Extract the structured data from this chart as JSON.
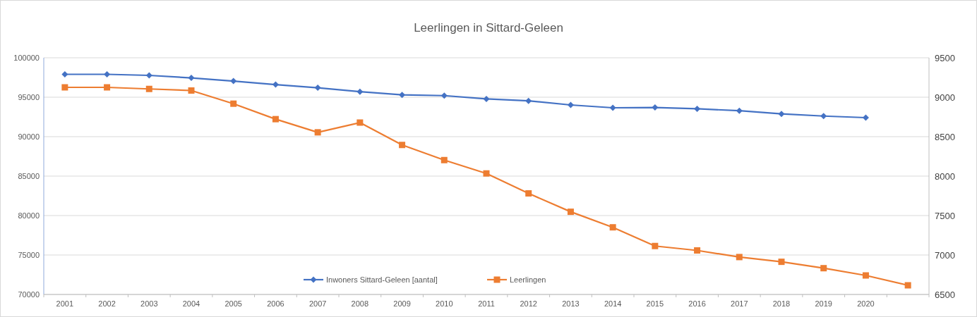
{
  "chart_data": {
    "type": "line",
    "title": "Leerlingen in Sittard-Geleen",
    "categories": [
      "2001",
      "2002",
      "2003",
      "2004",
      "2005",
      "2006",
      "2007",
      "2008",
      "2009",
      "2010",
      "2011",
      "2012",
      "2013",
      "2014",
      "2015",
      "2016",
      "2017",
      "2018",
      "2019",
      "2020",
      null
    ],
    "series": [
      {
        "name": "Inwoners Sittard-Geleen [aantal]",
        "color": "#4472c4",
        "marker": "diamond",
        "values": [
          97900,
          97900,
          97770,
          97450,
          97050,
          96600,
          96200,
          95700,
          95300,
          95200,
          94780,
          94540,
          94020,
          93660,
          93700,
          93530,
          93290,
          92890,
          92610,
          92410,
          null
        ]
      },
      {
        "name": "Leerlingen",
        "color": "#ed7d31",
        "marker": "square",
        "axis": "y2",
        "values": [
          9125,
          9125,
          9105,
          9085,
          8918,
          8722,
          8555,
          8678,
          8395,
          8203,
          8034,
          7781,
          7548,
          7351,
          7114,
          7058,
          6974,
          6914,
          6833,
          6741,
          6616
        ]
      }
    ],
    "ylim": [
      70000,
      100000
    ],
    "yticks": [
      70000,
      75000,
      80000,
      85000,
      90000,
      95000,
      100000
    ],
    "y2lim": [
      6500,
      9500
    ],
    "y2ticks": [
      6500,
      7000,
      7500,
      8000,
      8500,
      9000,
      9500
    ],
    "grid": "y",
    "legend": "bottom"
  }
}
